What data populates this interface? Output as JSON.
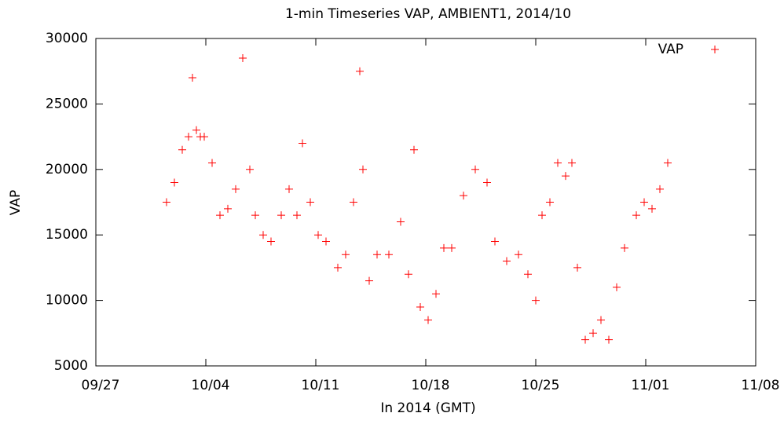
{
  "chart_data": {
    "type": "scatter",
    "title": "1-min Timeseries VAP, AMBIENT1, 2014/10",
    "xlabel": "In 2014 (GMT)",
    "ylabel": "VAP",
    "xlim": [
      0,
      42
    ],
    "xticks": [
      {
        "value": 0,
        "label": "09/27"
      },
      {
        "value": 7,
        "label": "10/04"
      },
      {
        "value": 14,
        "label": "10/11"
      },
      {
        "value": 21,
        "label": "10/18"
      },
      {
        "value": 28,
        "label": "10/25"
      },
      {
        "value": 35,
        "label": "11/01"
      },
      {
        "value": 42,
        "label": "11/08"
      }
    ],
    "ylim": [
      5000,
      30000
    ],
    "yticks": [
      5000,
      10000,
      15000,
      20000,
      25000,
      30000
    ],
    "legend": "top-right",
    "series": [
      {
        "name": "VAP",
        "color": "#ff0000",
        "x": [
          4.5,
          5.0,
          5.5,
          5.9,
          6.15,
          6.4,
          6.65,
          6.9,
          7.4,
          7.9,
          8.4,
          8.9,
          9.35,
          9.8,
          10.15,
          10.65,
          11.15,
          11.8,
          12.3,
          12.8,
          13.15,
          13.65,
          14.15,
          14.65,
          15.4,
          15.9,
          16.4,
          16.8,
          17.0,
          17.4,
          17.9,
          18.65,
          19.4,
          19.9,
          20.25,
          20.65,
          21.15,
          21.65,
          22.15,
          22.65,
          23.4,
          24.15,
          24.9,
          25.4,
          26.15,
          26.9,
          27.5,
          28.0,
          28.4,
          28.9,
          29.4,
          29.9,
          30.3,
          30.65,
          31.15,
          31.65,
          32.15,
          32.65,
          33.15,
          33.65,
          34.4,
          34.9,
          35.4,
          35.9,
          36.4
        ],
        "values": [
          17500,
          19000,
          21500,
          22500,
          27000,
          23000,
          22500,
          22500,
          20500,
          16500,
          17000,
          18500,
          28500,
          20000,
          16500,
          15000,
          14500,
          16500,
          18500,
          16500,
          22000,
          17500,
          15000,
          14500,
          12500,
          13500,
          17500,
          27500,
          20000,
          11500,
          13500,
          13500,
          16000,
          12000,
          21500,
          9500,
          8500,
          10500,
          14000,
          14000,
          18000,
          20000,
          19000,
          14500,
          13000,
          13500,
          12000,
          10000,
          16500,
          17500,
          20500,
          19500,
          20500,
          12500,
          7000,
          7500,
          8500,
          7000,
          11000,
          14000,
          16500,
          17500,
          17000,
          18500,
          20500
        ]
      }
    ]
  }
}
